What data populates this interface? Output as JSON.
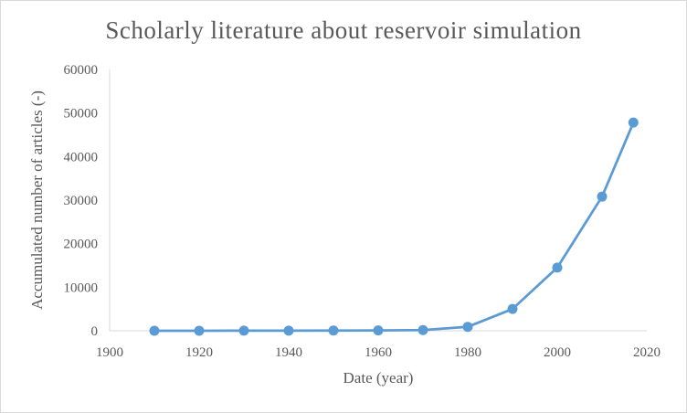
{
  "chart_data": {
    "type": "line",
    "title": "Scholarly literature about reservoir simulation",
    "xlabel": "Date (year)",
    "ylabel": "Accumulated number of articles (-)",
    "xlim": [
      1900,
      2020
    ],
    "ylim": [
      0,
      60000
    ],
    "x_ticks": [
      1900,
      1920,
      1940,
      1960,
      1980,
      2000,
      2020
    ],
    "y_ticks": [
      0,
      10000,
      20000,
      30000,
      40000,
      50000,
      60000
    ],
    "grid": false,
    "legend": "none",
    "series": [
      {
        "color": "#5b9bd5",
        "x": [
          1910,
          1920,
          1930,
          1940,
          1950,
          1960,
          1970,
          1980,
          1990,
          2000,
          2010,
          2017
        ],
        "y": [
          0,
          10,
          20,
          30,
          50,
          80,
          150,
          900,
          5000,
          14500,
          30800,
          47800
        ]
      }
    ]
  }
}
